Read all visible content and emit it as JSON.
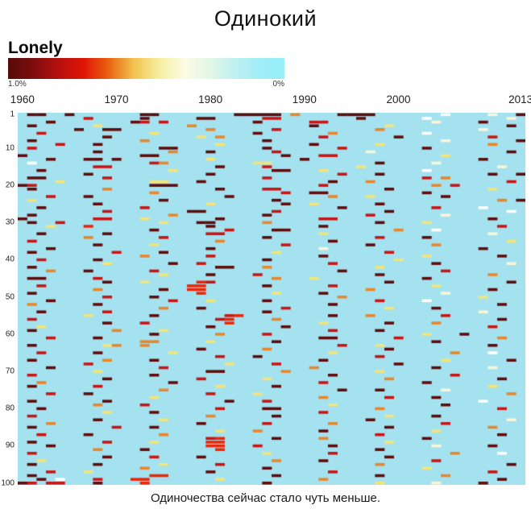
{
  "header": {
    "title": "Одинокий"
  },
  "footer": {
    "caption": "Одиночества сейчас стало чуть меньше."
  },
  "chart_data": {
    "type": "heatmap",
    "title": "Одинокий",
    "caption": "Одиночества сейчас стало чуть меньше.",
    "legend": {
      "label": "Lonely",
      "max_label": "1.0%",
      "min_label": "0%",
      "position": "top-left"
    },
    "x_axis": {
      "label": "",
      "tick_labels": [
        "1960",
        "1970",
        "1980",
        "1990",
        "2000",
        "2013"
      ],
      "tick_columns": [
        0,
        10,
        20,
        30,
        40,
        53
      ],
      "range": [
        1960,
        2013
      ],
      "num_columns": 54
    },
    "y_axis": {
      "label": "",
      "tick_labels": [
        "1",
        "10",
        "20",
        "30",
        "40",
        "50",
        "60",
        "70",
        "80",
        "90",
        "100"
      ],
      "tick_rows": [
        1,
        10,
        20,
        30,
        40,
        50,
        60,
        70,
        80,
        90,
        100
      ],
      "range": [
        1,
        100
      ],
      "num_rows": 100
    },
    "grid_on": false,
    "colors": {
      "background": "#a4e2f0",
      "palette": {
        "m": "#5f0b0b",
        "r": "#c81414",
        "R": "#ee2405",
        "o": "#e8862b",
        "y": "#f2e57b",
        "c": "#faf6d8",
        "w": "#ffffff"
      },
      "legend_gradient": [
        "#550a0a",
        "#7e0d0d",
        "#b51010",
        "#e01505",
        "#e96312",
        "#f2c24e",
        "#f6ee9e",
        "#fcfbe2",
        "#e4f6e6",
        "#c0f0f0",
        "#a0edf7",
        "#97eef9"
      ]
    },
    "value_percent_by_symbol": {
      "m": 1.0,
      "r": 0.8,
      "R": 0.7,
      "o": 0.5,
      "y": 0.35,
      "c": 0.2,
      "w": 0.1,
      ".": 0
    },
    "grid": [
      [
        ".mm..m",
        "......",
        ".mm...",
        ".....m",
        "mmmm.o",
        "....mm",
        "mm....",
        "...w..",
        "..c..m"
      ],
      [
        "......",
        ".r....",
        ".m....",
        ".mm...",
        "..rr..",
        "......",
        "m.....",
        ".w....",
        "....c."
      ],
      [
        "...m..",
        "......",
        "mr.r..",
        "......",
        ".m....",
        ".rr...",
        "......",
        "..c...",
        ".m...."
      ],
      [
        ".m....",
        "..y...",
        "......",
        "o.....",
        "......",
        ".m....",
        "...y..",
        "......",
        "....m."
      ],
      [
        "......",
        "m..mm.",
        "......",
        "..o...",
        "...r..",
        "......",
        "..o...",
        "......",
        ".c...."
      ],
      [
        "..r...",
        "......",
        "..y...",
        "......",
        ".m....",
        "...o..",
        "......",
        ".w....",
        "......"
      ],
      [
        "......",
        "...m..",
        "......",
        ".y.o..",
        "......",
        "..r...",
        "....m.",
        "......",
        "..r..."
      ],
      [
        ".m....",
        "......",
        ".o....",
        "......",
        "..m...",
        "......",
        "......",
        "...c..",
        ".....m"
      ],
      [
        "....r.",
        "..m...",
        "......",
        "...y..",
        "......",
        ".m....",
        "..y...",
        "......",
        "..o..."
      ],
      [
        ".r....",
        "......",
        "...mm.",
        "......",
        "..m...",
        "....r.",
        "......",
        ".m....",
        "......"
      ],
      [
        "......",
        "..m...",
        "....o.",
        "..m...",
        "...r..",
        "......",
        ".c....",
        "......",
        "....m."
      ],
      [
        "m.....",
        "......",
        ".mm...",
        "......",
        "....m.",
        "..rr..",
        "......",
        "...y..",
        "......"
      ],
      [
        "...m..",
        ".mm.m.",
        "......",
        "..y...",
        "......",
        "m.....",
        "......",
        "......",
        ".m...."
      ],
      [
        ".w....",
        "......",
        "..ro..",
        "......",
        ".yy...",
        "......",
        "..m...",
        "..c...",
        "......"
      ],
      [
        "......",
        "..rr..",
        "......",
        "...m..",
        "..r...",
        "......",
        "y.....",
        "......",
        "...c.."
      ],
      [
        "..m...",
        "......",
        "....y.",
        "......",
        "...mm.",
        "..y...",
        "......",
        ".w....",
        "......"
      ],
      [
        "......",
        ".m....",
        "......",
        "..m...",
        "......",
        "....r.",
        "..m...",
        "......",
        "..m..m"
      ],
      [
        ".mm...",
        "...r..",
        "......",
        "......",
        "..r...",
        "......",
        "......",
        ".r.o..",
        "......"
      ],
      [
        "....y.",
        "......",
        "..yy..",
        ".m....",
        "......",
        "...m..",
        ".o....",
        "......",
        "....r."
      ],
      [
        "mr....",
        "......",
        "..mmm.",
        "......",
        "......",
        "..r...",
        "......",
        "..o.r.",
        "......"
      ],
      [
        ".m....",
        "...o..",
        "......",
        "...m..",
        "..rr..",
        "......",
        "...m..",
        "......",
        "..y..."
      ],
      [
        "......",
        "......",
        "..o...",
        "......",
        "....r.",
        ".mm...",
        "......",
        ".m....",
        "......"
      ],
      [
        "...r..",
        ".m....",
        "......",
        "....m.",
        "......",
        "...o..",
        ".y....",
        "...m..",
        "......"
      ],
      [
        ".y....",
        "......",
        "...m..",
        "......",
        "...m..",
        "......",
        "......",
        "......",
        "...o.m"
      ],
      [
        "......",
        "..m...",
        "......",
        "..y...",
        "....m.",
        ".y....",
        "..m...",
        "......",
        "......"
      ],
      [
        "..m...",
        "......",
        ".r....",
        "......",
        "......",
        "....m.",
        "......",
        "..r...",
        ".w...."
      ],
      [
        "......",
        "...r..",
        "......",
        "mm....",
        "...r..",
        "......",
        "...m..",
        "......",
        "....w."
      ],
      [
        ".m....",
        "......",
        "....o.",
        "......",
        "..m...",
        "......",
        ".r....",
        "...c..",
        "......"
      ],
      [
        "m.....",
        "..rr..",
        ".y....",
        "...m..",
        "......",
        "..rr..",
        "......",
        "......",
        "..m..."
      ],
      [
        ".m..r.",
        "......",
        "...y..",
        ".mm...",
        "..o...",
        "......",
        "..m...",
        ".y....",
        "......"
      ],
      [
        "...y..",
        ".R....",
        "......",
        "..m...",
        "......",
        "..m...",
        "......",
        "......",
        "...r.."
      ],
      [
        "......",
        "......",
        "..m...",
        "....r.",
        "...mm.",
        "......",
        "....o.",
        "..w...",
        "......"
      ],
      [
        "..m...",
        "...m..",
        "......",
        "..rr..",
        "......",
        "..y...",
        "......",
        "......",
        "..c..."
      ],
      [
        "......",
        ".o....",
        "...r..",
        "......",
        "..m...",
        "......",
        "..r...",
        ".m....",
        "......"
      ],
      [
        ".r....",
        "......",
        "......",
        "...o..",
        "......",
        "...m..",
        "......",
        "......",
        "....y."
      ],
      [
        "......",
        "..m...",
        "..y...",
        "......",
        "....r.",
        "......",
        ".m....",
        "..o...",
        "......"
      ],
      [
        "...m..",
        "......",
        "......",
        "..m...",
        "......",
        "..c...",
        "......",
        "......",
        ".m...."
      ],
      [
        ".m....",
        "....r.",
        "...m..",
        "......",
        "...y..",
        "......",
        "...r..",
        "......",
        "......"
      ],
      [
        "......",
        "......",
        ".o....",
        "..r...",
        "......",
        "..m...",
        "......",
        ".y....",
        "...m.."
      ],
      [
        "..r...",
        "..m...",
        "......",
        "......",
        "..m...",
        "......",
        "....y.",
        "......",
        "......"
      ],
      [
        "......",
        "...y..",
        "....m.",
        ".r....",
        "......",
        "...r..",
        "......",
        "..m...",
        "....c."
      ],
      [
        ".m....",
        "......",
        "......",
        "...mm.",
        "..o...",
        "......",
        "..y...",
        "......",
        "......"
      ],
      [
        "...o..",
        ".m....",
        "..r...",
        "......",
        "......",
        "....m.",
        "......",
        "...r..",
        "......"
      ],
      [
        "......",
        "......",
        "...y..",
        "..m...",
        ".r....",
        "......",
        "..m...",
        "......",
        "..o..."
      ],
      [
        ".mm...",
        "..r...",
        "......",
        "......",
        "...o..",
        ".y....",
        "......",
        ".m....",
        "......"
      ],
      [
        "......",
        "...m..",
        ".y....",
        ".Rr...",
        "......",
        "......",
        "...m..",
        "......",
        "....m."
      ],
      [
        "..r...",
        "......",
        "......",
        "RR....",
        "..m...",
        "...r..",
        "......",
        "..y...",
        "......"
      ],
      [
        "......",
        "..o...",
        "...m..",
        "RR....",
        "......",
        "......",
        ".o....",
        "......",
        "..m..."
      ],
      [
        ".m....",
        "......",
        "......",
        ".R....",
        "...y..",
        "..m...",
        "......",
        "...c..",
        "......"
      ],
      [
        "......",
        "...r..",
        "..m...",
        "......",
        "......",
        "....o.",
        "......",
        "......",
        ".y...."
      ],
      [
        "...m..",
        "......",
        "....r.",
        "..y...",
        "..m...",
        "......",
        "..r...",
        ".w....",
        "......"
      ],
      [
        ".o....",
        "..m...",
        "......",
        "......",
        "......",
        "...m..",
        "......",
        "......",
        "...m.."
      ],
      [
        "......",
        "......",
        "...o..",
        ".m....",
        "....r.",
        "......",
        "...y..",
        "..m...",
        "......"
      ],
      [
        "..m...",
        "...r..",
        "......",
        "......",
        "..m...",
        "......",
        "......",
        "......",
        ".c...."
      ],
      [
        "......",
        ".y....",
        "..m...",
        "....rR",
        "......",
        "...m..",
        ".o....",
        "...r..",
        "......"
      ],
      [
        ".r....",
        "......",
        "......",
        "...rR.",
        "...o..",
        "......",
        "......",
        "......",
        "...m.."
      ],
      [
        "......",
        "...m..",
        ".r....",
        "....R.",
        "......",
        "..y...",
        "...m..",
        "..o...",
        "......"
      ],
      [
        "..y...",
        "......",
        "......",
        "..m...",
        "....m.",
        "......",
        "......",
        "......",
        "..r..."
      ],
      [
        ".m....",
        "....o.",
        "...y..",
        "......",
        "......",
        "...r..",
        "..m...",
        "......",
        "......"
      ],
      [
        "......",
        "......",
        "..m...",
        "...o..",
        "..r...",
        "......",
        "......",
        ".y...m",
        "......"
      ],
      [
        "...r..",
        "..m...",
        "......",
        "......",
        "......",
        "..mm..",
        "....r.",
        "......",
        "...o.."
      ],
      [
        "......",
        "......",
        ".oo...",
        "..y...",
        "...m..",
        "......",
        "......",
        "..m...",
        "......"
      ],
      [
        ".m....",
        "...yo.",
        ".o....",
        "......",
        "......",
        "....r.",
        "..y...",
        "......",
        "..m..."
      ],
      [
        "......",
        "......",
        "......",
        ".m....",
        "..o...",
        "......",
        "...m..",
        "......",
        "......"
      ],
      [
        "..r...",
        "..m...",
        "....y.",
        "......",
        "......",
        "...y..",
        "......",
        "....o.",
        "..w..."
      ],
      [
        "......",
        "......",
        "......",
        "...r..",
        ".m....",
        "......",
        "..r...",
        "......",
        "......"
      ],
      [
        ".m....",
        "...o..",
        "..m...",
        "......",
        "......",
        "..m...",
        "......",
        "...y..",
        "....m."
      ],
      [
        "......",
        ".r....",
        "......",
        "....y.",
        "...r..",
        "......",
        "....m.",
        "......",
        "......"
      ],
      [
        "...m..",
        "......",
        "...r..",
        "......",
        "......",
        ".o....",
        "......",
        "..m...",
        "..c..."
      ],
      [
        "......",
        "..y...",
        "......",
        "..mm..",
        "....o.",
        "......",
        "..y...",
        "......",
        "......"
      ],
      [
        ".r....",
        "......",
        "..m...",
        "......",
        "......",
        "...m..",
        "......",
        "....r.",
        "......"
      ],
      [
        "......",
        "...m..",
        "......",
        ".r....",
        "..y...",
        "......",
        "...o..",
        "......",
        "...m.."
      ],
      [
        "..o...",
        "......",
        "....m.",
        "......",
        "......",
        "..r...",
        "......",
        ".m....",
        "......"
      ],
      [
        ".m....",
        "..r...",
        "......",
        "...y..",
        "...m..",
        "......",
        "......",
        "......",
        "..y..."
      ],
      [
        "......",
        "......",
        "...o..",
        "......",
        "......",
        "....m.",
        "..m...",
        "...c..",
        "......"
      ],
      [
        "...r..",
        ".m....",
        "......",
        "..r...",
        ".y....",
        "......",
        "......",
        "......",
        "....o."
      ],
      [
        "......",
        "......",
        "..y...",
        "......",
        "......",
        "..o...",
        "...r..",
        "..m...",
        "......"
      ],
      [
        ".m....",
        "...m..",
        "......",
        "....m.",
        "..r...",
        "......",
        "......",
        "......",
        ".w...."
      ],
      [
        "......",
        "..o...",
        ".r....",
        "......",
        "......",
        "...y..",
        "......",
        "...m..",
        "......"
      ],
      [
        "..m...",
        "......",
        "......",
        "...r..",
        "..mm..",
        "......",
        "..o...",
        "......",
        "...r.."
      ],
      [
        "......",
        "...y..",
        "..m...",
        "......",
        "......",
        "..r...",
        "......",
        "......",
        "......"
      ],
      [
        ".r....",
        "......",
        "......",
        "..o...",
        "...m..",
        "......",
        "...y..",
        "..m...",
        "......"
      ],
      [
        "......",
        "..m...",
        "...y..",
        "......",
        "......",
        "......",
        ".m....",
        "......",
        "....c."
      ],
      [
        "...o..",
        "......",
        "......",
        ".m....",
        "..r...",
        "...o..",
        "......",
        "...r..",
        "......"
      ],
      [
        ".m....",
        "....r.",
        "..m...",
        "......",
        "......",
        "......",
        "...m..",
        "......",
        "..o..."
      ],
      [
        "......",
        "......",
        "......",
        "...y..",
        ".o....",
        "..m...",
        "......",
        "..y...",
        "......"
      ],
      [
        "..r...",
        ".m....",
        "...o..",
        "......",
        "......",
        "......",
        "..r...",
        "......",
        "...m.."
      ],
      [
        "......",
        "......",
        "......",
        "..rR..",
        "...m..",
        "..o...",
        "......",
        ".m....",
        "......"
      ],
      [
        ".m....",
        "...r..",
        "..y...",
        "..RR..",
        "......",
        "......",
        "...y..",
        "......",
        "......"
      ],
      [
        "...m..",
        "......",
        "......",
        "..RR..",
        ".r....",
        "...m..",
        "......",
        "..c...",
        "..m..."
      ],
      [
        "......",
        "..o...",
        ".m....",
        "...R..",
        "......",
        "......",
        "..m...",
        "......",
        "......"
      ],
      [
        ".r....",
        "......",
        "......",
        "......",
        "..y...",
        "...r..",
        "......",
        "....o.",
        "...w.."
      ],
      [
        "......",
        "...m..",
        "..r...",
        ".m....",
        "......",
        "......",
        "...m..",
        "......",
        "......"
      ],
      [
        "..y...",
        "......",
        "......",
        "......",
        "...o..",
        "..m...",
        "......",
        "..r...",
        "......"
      ],
      [
        ".m....",
        "..m...",
        "...y..",
        "...r..",
        "......",
        "......",
        "..o...",
        "......",
        "....m."
      ],
      [
        "......",
        "......",
        ".o....",
        "......",
        "..m...",
        "......",
        "......",
        ".y....",
        "......"
      ],
      [
        "...r..",
        ".y....",
        "......",
        "..m...",
        "......",
        "...r..",
        "......",
        "......",
        "..r..."
      ],
      [
        ".m....",
        "......",
        "..RR..",
        "......",
        "...m..",
        "......",
        "..m...",
        "...o..",
        "......"
      ],
      [
        "..m.w.",
        "..r...",
        "RR....",
        "...y..",
        "......",
        "..o...",
        "......",
        "......",
        "...m.."
      ],
      [
        "mr.rr.",
        "..m...",
        ".R....",
        "......",
        "..m...",
        "......",
        "..y...",
        "..c...",
        ".m...."
      ]
    ]
  }
}
